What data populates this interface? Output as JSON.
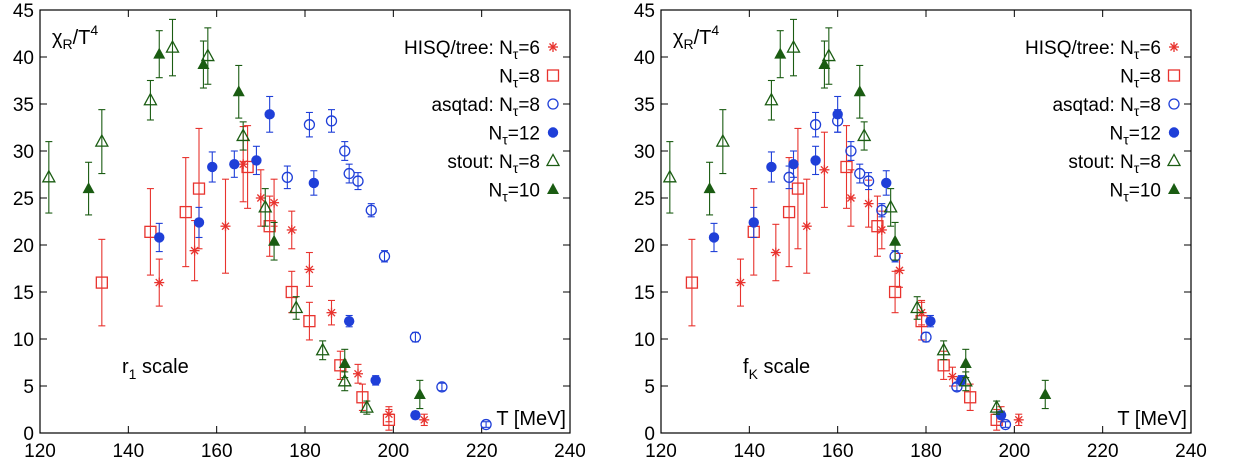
{
  "colors": {
    "hisq": "#e8332e",
    "asqtad": "#1f3fd8",
    "stout": "#1a5c12",
    "axis": "#000000"
  },
  "chart_data": [
    {
      "type": "scatter",
      "ylabel_main": "χ",
      "ylabel_sub": "R",
      "ylabel_tail": "/T",
      "ylabel_sup": "4",
      "xlabel": "T [MeV]",
      "annotation_main": "r",
      "annotation_sub": "1",
      "annotation_tail": " scale",
      "xlim": [
        120,
        240
      ],
      "ylim": [
        0,
        45
      ],
      "xticks": [
        120,
        140,
        160,
        180,
        200,
        220,
        240
      ],
      "yticks": [
        0,
        5,
        10,
        15,
        20,
        25,
        30,
        35,
        40,
        45
      ],
      "legend_position": "top-right",
      "series": [
        {
          "legend_pre": "HISQ/tree: N",
          "legend_sub": "τ",
          "legend_post": "=6",
          "marker": "star",
          "color": "hisq",
          "points": [
            [
              147,
              16.0,
              2.5
            ],
            [
              155,
              19.4,
              3.2
            ],
            [
              162,
              22.0,
              5.0
            ],
            [
              166,
              28.6,
              4.0
            ],
            [
              170,
              25.0,
              3.0
            ],
            [
              173,
              24.5,
              2.5
            ],
            [
              177,
              21.6,
              2.0
            ],
            [
              181,
              17.4,
              1.8
            ],
            [
              186,
              12.8,
              1.3
            ],
            [
              192,
              6.3,
              1.0
            ],
            [
              199,
              2.0,
              0.8
            ],
            [
              207,
              1.4,
              0.6
            ]
          ]
        },
        {
          "legend_pre": "N",
          "legend_sub": "τ",
          "legend_post": "=8",
          "marker": "open-square",
          "color": "hisq",
          "points": [
            [
              134,
              16.0,
              4.6
            ],
            [
              145,
              21.4,
              4.6
            ],
            [
              153,
              23.5,
              5.8
            ],
            [
              156,
              26.0,
              6.4
            ],
            [
              167,
              28.3,
              4.4
            ],
            [
              172,
              22.0,
              3.2
            ],
            [
              177,
              15.0,
              2.2
            ],
            [
              181,
              11.9,
              2.0
            ],
            [
              188,
              7.2,
              1.5
            ],
            [
              193,
              3.8,
              1.4
            ],
            [
              199,
              1.4,
              1.1
            ]
          ]
        },
        {
          "legend_pre": "asqtad: N",
          "legend_sub": "τ",
          "legend_post": "=8",
          "marker": "open-circle",
          "color": "asqtad",
          "points": [
            [
              176,
              27.2,
              1.2
            ],
            [
              181,
              32.8,
              1.3
            ],
            [
              186,
              33.2,
              1.2
            ],
            [
              189,
              30.0,
              1.0
            ],
            [
              190,
              27.6,
              1.0
            ],
            [
              192,
              26.8,
              0.9
            ],
            [
              195,
              23.7,
              0.7
            ],
            [
              198,
              18.8,
              0.6
            ],
            [
              205,
              10.2,
              0.5
            ],
            [
              211,
              4.9,
              0.4
            ],
            [
              221,
              0.9,
              0.3
            ]
          ]
        },
        {
          "legend_pre": "N",
          "legend_sub": "τ",
          "legend_post": "=12",
          "marker": "filled-circle",
          "color": "asqtad",
          "points": [
            [
              147,
              20.8,
              1.5
            ],
            [
              156,
              22.4,
              1.6
            ],
            [
              159,
              28.3,
              1.6
            ],
            [
              164,
              28.6,
              1.4
            ],
            [
              169,
              29.0,
              1.5
            ],
            [
              172,
              33.9,
              1.9
            ],
            [
              182,
              26.6,
              1.3
            ],
            [
              190,
              11.9,
              0.6
            ],
            [
              196,
              5.6,
              0.5
            ],
            [
              205,
              1.9,
              0.4
            ]
          ]
        },
        {
          "legend_pre": "stout: N",
          "legend_sub": "τ",
          "legend_post": "=8",
          "marker": "open-triangle",
          "color": "stout",
          "points": [
            [
              122,
              27.2,
              3.8
            ],
            [
              134,
              31.0,
              3.4
            ],
            [
              145,
              35.4,
              2.1
            ],
            [
              150,
              41.0,
              3.0
            ],
            [
              158,
              40.1,
              3.0
            ],
            [
              166,
              31.6,
              1.5
            ],
            [
              171,
              24.0,
              2.0
            ],
            [
              178,
              13.3,
              1.2
            ],
            [
              184,
              8.8,
              1.0
            ],
            [
              189,
              5.5,
              1.0
            ],
            [
              194,
              2.7,
              0.7
            ]
          ]
        },
        {
          "legend_pre": "N",
          "legend_sub": "τ",
          "legend_post": "=10",
          "marker": "filled-triangle",
          "color": "stout",
          "points": [
            [
              131,
              26.0,
              2.8
            ],
            [
              147,
              40.3,
              2.5
            ],
            [
              157,
              39.2,
              2.5
            ],
            [
              165,
              36.3,
              2.8
            ],
            [
              173,
              20.4,
              2.0
            ],
            [
              189,
              7.4,
              1.5
            ],
            [
              206,
              4.1,
              1.5
            ]
          ]
        }
      ]
    },
    {
      "type": "scatter",
      "ylabel_main": "χ",
      "ylabel_sub": "R",
      "ylabel_tail": "/T",
      "ylabel_sup": "4",
      "xlabel": "T [MeV]",
      "annotation_main": "f",
      "annotation_sub": "K",
      "annotation_tail": " scale",
      "xlim": [
        120,
        240
      ],
      "ylim": [
        0,
        45
      ],
      "xticks": [
        120,
        140,
        160,
        180,
        200,
        220,
        240
      ],
      "yticks": [
        0,
        5,
        10,
        15,
        20,
        25,
        30,
        35,
        40,
        45
      ],
      "legend_position": "top-right",
      "series": [
        {
          "legend_pre": "HISQ/tree: N",
          "legend_sub": "τ",
          "legend_post": "=6",
          "marker": "star",
          "color": "hisq",
          "points": [
            [
              138,
              16.0,
              2.5
            ],
            [
              146,
              19.2,
              3.0
            ],
            [
              153,
              22.0,
              5.0
            ],
            [
              157,
              28.0,
              4.0
            ],
            [
              163,
              25.0,
              3.0
            ],
            [
              167,
              24.4,
              2.5
            ],
            [
              170,
              21.6,
              2.0
            ],
            [
              174,
              17.3,
              1.8
            ],
            [
              179,
              12.8,
              1.3
            ],
            [
              186,
              6.0,
              1.0
            ],
            [
              197,
              2.0,
              0.8
            ],
            [
              201,
              1.4,
              0.6
            ]
          ]
        },
        {
          "legend_pre": "N",
          "legend_sub": "τ",
          "legend_post": "=8",
          "marker": "open-square",
          "color": "hisq",
          "points": [
            [
              127,
              16.0,
              4.6
            ],
            [
              141,
              21.4,
              4.6
            ],
            [
              149,
              23.5,
              5.8
            ],
            [
              151,
              26.0,
              6.4
            ],
            [
              162,
              28.3,
              4.4
            ],
            [
              169,
              22.0,
              3.2
            ],
            [
              173,
              15.0,
              2.2
            ],
            [
              179,
              11.9,
              2.0
            ],
            [
              184,
              7.2,
              1.5
            ],
            [
              190,
              3.8,
              1.4
            ],
            [
              196,
              1.4,
              1.1
            ]
          ]
        },
        {
          "legend_pre": "asqtad: N",
          "legend_sub": "τ",
          "legend_post": "=8",
          "marker": "open-circle",
          "color": "asqtad",
          "points": [
            [
              149,
              27.2,
              1.2
            ],
            [
              155,
              32.8,
              1.3
            ],
            [
              160,
              33.2,
              1.2
            ],
            [
              163,
              30.0,
              1.0
            ],
            [
              165,
              27.6,
              1.0
            ],
            [
              167,
              26.8,
              0.9
            ],
            [
              170,
              23.7,
              0.7
            ],
            [
              173,
              18.8,
              0.6
            ],
            [
              180,
              10.2,
              0.5
            ],
            [
              187,
              4.9,
              0.4
            ],
            [
              198,
              0.9,
              0.3
            ]
          ]
        },
        {
          "legend_pre": "N",
          "legend_sub": "τ",
          "legend_post": "=12",
          "marker": "filled-circle",
          "color": "asqtad",
          "points": [
            [
              132,
              20.8,
              1.5
            ],
            [
              141,
              22.4,
              1.6
            ],
            [
              145,
              28.3,
              1.6
            ],
            [
              150,
              28.6,
              1.4
            ],
            [
              155,
              29.0,
              1.5
            ],
            [
              160,
              33.9,
              1.9
            ],
            [
              171,
              26.6,
              1.3
            ],
            [
              181,
              11.9,
              0.6
            ],
            [
              188,
              5.6,
              0.5
            ],
            [
              197,
              1.9,
              0.4
            ]
          ]
        },
        {
          "legend_pre": "stout: N",
          "legend_sub": "τ",
          "legend_post": "=8",
          "marker": "open-triangle",
          "color": "stout",
          "points": [
            [
              122,
              27.2,
              3.8
            ],
            [
              134,
              31.0,
              3.4
            ],
            [
              145,
              35.4,
              2.1
            ],
            [
              150,
              41.0,
              3.0
            ],
            [
              158,
              40.1,
              3.0
            ],
            [
              166,
              31.6,
              1.5
            ],
            [
              172,
              24.0,
              2.0
            ],
            [
              178,
              13.3,
              1.2
            ],
            [
              184,
              8.8,
              1.0
            ],
            [
              189,
              5.5,
              1.0
            ],
            [
              196,
              2.7,
              0.7
            ]
          ]
        },
        {
          "legend_pre": "N",
          "legend_sub": "τ",
          "legend_post": "=10",
          "marker": "filled-triangle",
          "color": "stout",
          "points": [
            [
              131,
              26.0,
              2.8
            ],
            [
              147,
              40.3,
              2.5
            ],
            [
              157,
              39.2,
              2.5
            ],
            [
              165,
              36.3,
              2.8
            ],
            [
              173,
              20.4,
              2.0
            ],
            [
              189,
              7.4,
              1.5
            ],
            [
              207,
              4.1,
              1.5
            ]
          ]
        }
      ]
    }
  ]
}
